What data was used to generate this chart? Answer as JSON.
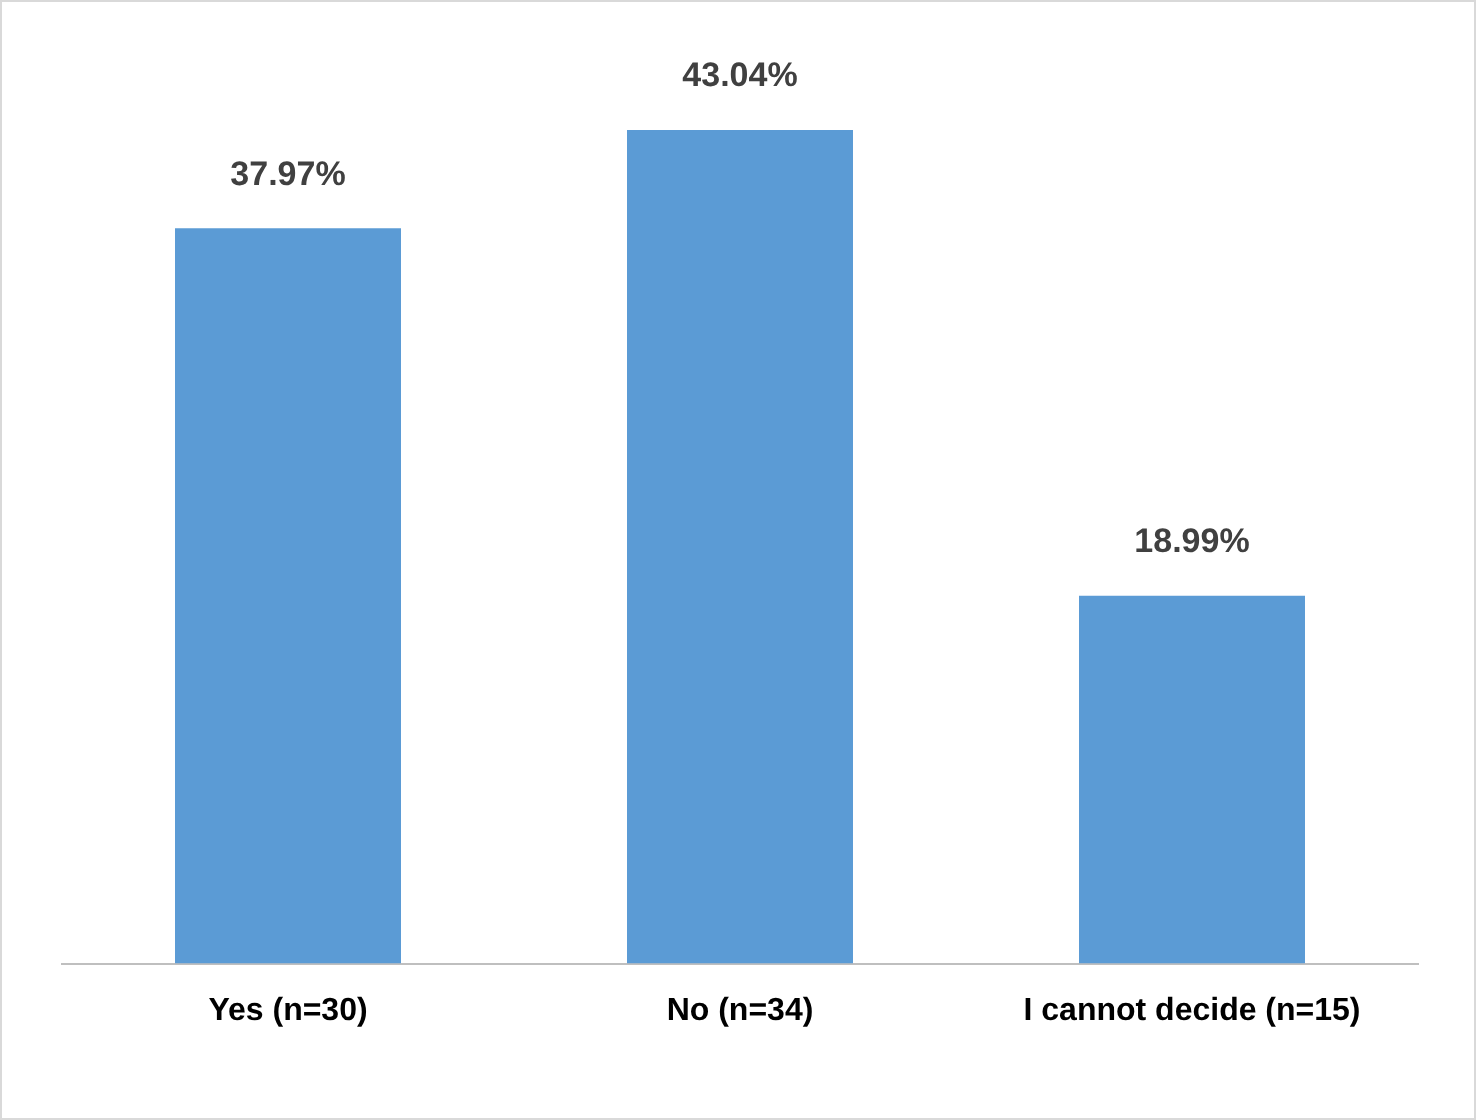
{
  "chart_data": {
    "type": "bar",
    "categories": [
      "Yes (n=30)",
      "No (n=34)",
      "I cannot decide (n=15)"
    ],
    "values": [
      37.97,
      43.04,
      18.99
    ],
    "value_labels": [
      "37.97%",
      "43.04%",
      "18.99%"
    ],
    "color": "#5b9bd5",
    "grid": false,
    "legend": false
  }
}
